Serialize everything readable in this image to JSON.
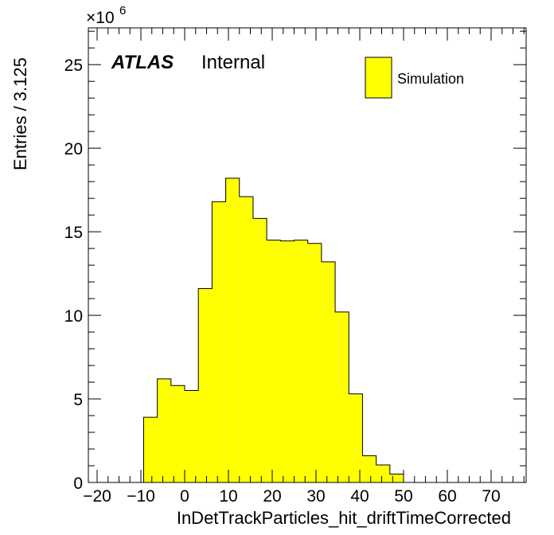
{
  "chart_data": {
    "type": "bar",
    "style": "histogram",
    "xlabel": "InDetTrackParticles_hit_driftTimeCorrected",
    "ylabel": "Entries / 3.125",
    "y_multiplier_label": "×10",
    "y_multiplier_exponent": "6",
    "xlim": [
      -22,
      78
    ],
    "ylim": [
      0,
      27.2
    ],
    "x_ticks": [
      "−20",
      "−10",
      "0",
      "10",
      "20",
      "30",
      "40",
      "50",
      "60",
      "70"
    ],
    "x_tick_values": [
      -20,
      -10,
      0,
      10,
      20,
      30,
      40,
      50,
      60,
      70
    ],
    "y_ticks": [
      "0",
      "5",
      "10",
      "15",
      "20",
      "25"
    ],
    "y_tick_values": [
      0,
      5,
      10,
      15,
      20,
      25
    ],
    "bin_width": 3.125,
    "bin_edges": [
      -9.375,
      -6.25,
      -3.125,
      0,
      3.125,
      6.25,
      9.375,
      12.5,
      15.625,
      18.75,
      21.875,
      25,
      28.125,
      31.25,
      34.375,
      37.5,
      40.625,
      43.75,
      46.875,
      50
    ],
    "series": [
      {
        "name": "Simulation",
        "color": "#ffff00",
        "values": [
          3.9,
          6.2,
          5.8,
          5.5,
          11.6,
          16.8,
          18.2,
          17.1,
          15.8,
          14.5,
          14.45,
          14.5,
          14.3,
          13.2,
          10.2,
          5.3,
          1.6,
          1.05,
          0.5
        ]
      }
    ],
    "annotations": {
      "atlas": "ATLAS",
      "status": "Internal"
    },
    "legend": {
      "position": "top-right",
      "entries": [
        "Simulation"
      ]
    },
    "grid": false
  }
}
